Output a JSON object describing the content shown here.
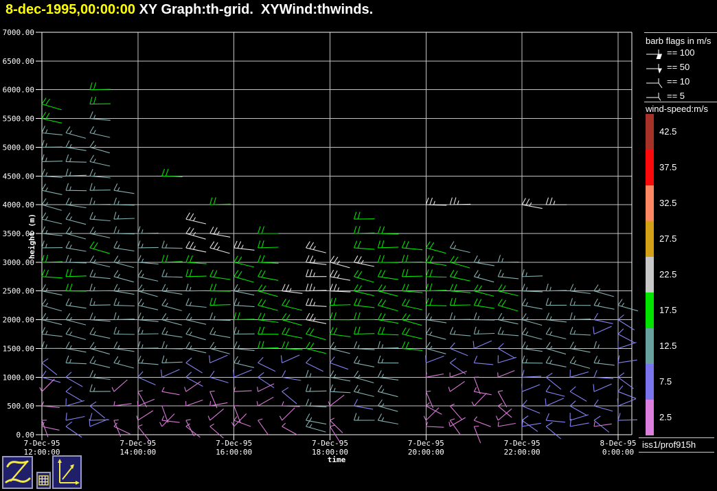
{
  "title": {
    "timestamp": "8-dec-1995,00:00:00",
    "graph_label": " XY Graph:th-grid.  XYWind:thwinds."
  },
  "legend": {
    "flags_title": "barb flags in m/s",
    "flags": [
      {
        "label": "== 100",
        "glyph": "flag-100"
      },
      {
        "label": "== 50",
        "glyph": "flag-50"
      },
      {
        "label": "== 10",
        "glyph": "barb-10"
      },
      {
        "label": "== 5",
        "glyph": "barb-5"
      }
    ],
    "colorbar_title": "wind-speed:m/s",
    "colorbar": [
      {
        "label": "42.5",
        "color": "#a63129"
      },
      {
        "label": "37.5",
        "color": "#fa0a0a"
      },
      {
        "label": "32.5",
        "color": "#fc8763"
      },
      {
        "label": "27.5",
        "color": "#d4a017"
      },
      {
        "label": "22.5",
        "color": "#c8c8c8"
      },
      {
        "label": "17.5",
        "color": "#00e400"
      },
      {
        "label": "12.5",
        "color": "#69a1a1"
      },
      {
        "label": "7.5",
        "color": "#7b74ef"
      },
      {
        "label": "2.5",
        "color": "#dc7ede"
      }
    ],
    "platform_label": "iss1/prof915h"
  },
  "chart_data": {
    "type": "wind-barb-time-height",
    "xlabel": "time",
    "ylabel": "height (m)",
    "x_ticks": [
      {
        "date": "7-Dec-95",
        "time": "12:00:00"
      },
      {
        "date": "7-Dec-95",
        "time": "14:00:00"
      },
      {
        "date": "7-Dec-95",
        "time": "16:00:00"
      },
      {
        "date": "7-Dec-95",
        "time": "18:00:00"
      },
      {
        "date": "7-Dec-95",
        "time": "20:00:00"
      },
      {
        "date": "7-Dec-95",
        "time": "22:00:00"
      },
      {
        "date": "8-Dec-95",
        "time": "0:00:00"
      }
    ],
    "y_ticks": [
      "7000.00",
      "6500.00",
      "6000.00",
      "5500.00",
      "5000.00",
      "4500.00",
      "4000.00",
      "3500.00",
      "3000.00",
      "2500.00",
      "2000.00",
      "1500.00",
      "1000.00",
      "500.00",
      "0.00"
    ],
    "ylim": [
      0,
      7000
    ],
    "x_step_minutes": 30,
    "height_top_m": 6000,
    "height_step_m": 250,
    "speed_classes": {
      "m": {
        "speed_ms": 2.5,
        "color": "#da7ad8"
      },
      "b": {
        "speed_ms": 7.5,
        "color": "#8583f5"
      },
      "t": {
        "speed_ms": 12.5,
        "color": "#85b2b2"
      },
      "g": {
        "speed_ms": 17.5,
        "color": "#00e400"
      },
      "w": {
        "speed_ms": 22.5,
        "color": "#e6e6e6"
      }
    },
    "barb_rows": [
      "..g......................",
      "g.g......................",
      "g.t......................",
      "ttt......................",
      "ttt......................",
      "ttt......................",
      "ttt..g...................",
      "tttt.....................",
      "tttt...g........ww..ww...",
      "tttt..w......g...........",
      "ttttt.ww.g...gg..........",
      "ttgtttwwwg.w.ggggt.......",
      "gttttgg.gg.wwwggggtt.....",
      "ggttttgggg.wwgggggttt....",
      "tgtttttgtgwwwgggggggtttt.",
      "tttttttgtggwggggggggttttt",
      "ttttttttgggwggggtttttttbb",
      "tttttttttgggggggtttttttbb",
      "tttttttttgggtttgtbbbttttb",
      "btttttbbtbbbbtt.bbbbttttb",
      "bbt.bbbbbbbtttt.mmmmbbbbb",
      "mbtmmmmmmmbtttt.mmmmbbbbb",
      "mbbmmmmmmmmtmbt.mmmmbbbbb",
      "mbbmmmmmmmmtmtt.mmmmbbbbb",
      "mbbmmmmmm.mtm...mmmmbbbm."
    ]
  },
  "toolbar": {
    "buttons": [
      "zebra-logo",
      "grid-tool",
      "xy-graph-tool"
    ]
  }
}
